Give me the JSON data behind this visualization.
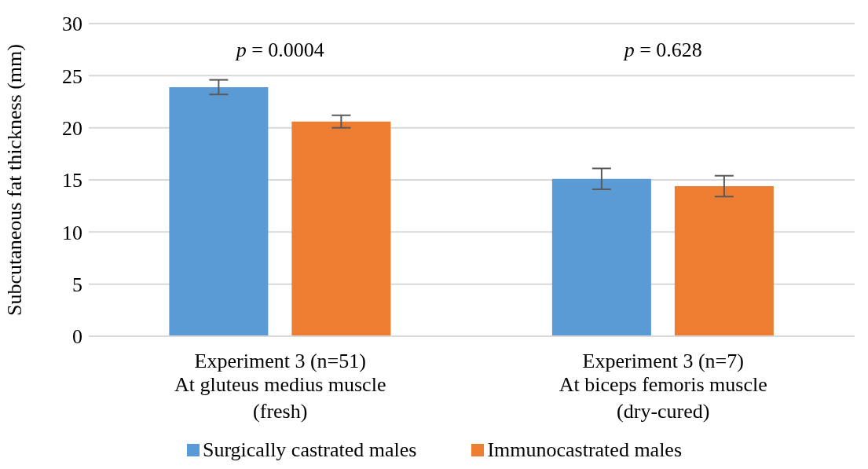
{
  "chart_data": {
    "type": "bar",
    "ylabel": "Subcutaneous fat thickness (mm)",
    "categories": [
      "Experiment 3 (n=51)\nAt gluteus medius muscle\n(fresh)",
      "Experiment 3 (n=7)\nAt biceps femoris muscle\n(dry-cured)"
    ],
    "series": [
      {
        "name": "Surgically castrated males",
        "color": "#5b9bd5",
        "values": [
          23.9,
          15.1
        ],
        "errors": [
          0.7,
          1.0
        ]
      },
      {
        "name": "Immunocastrated males",
        "color": "#ed7d31",
        "values": [
          20.6,
          14.4
        ],
        "errors": [
          0.6,
          1.0
        ]
      }
    ],
    "ylim": [
      0,
      30
    ],
    "yticks": [
      0,
      5,
      10,
      15,
      20,
      25,
      30
    ],
    "grid": "y",
    "legend": "bottom",
    "annotations": [
      "p = 0.0004",
      "p = 0.628"
    ]
  }
}
